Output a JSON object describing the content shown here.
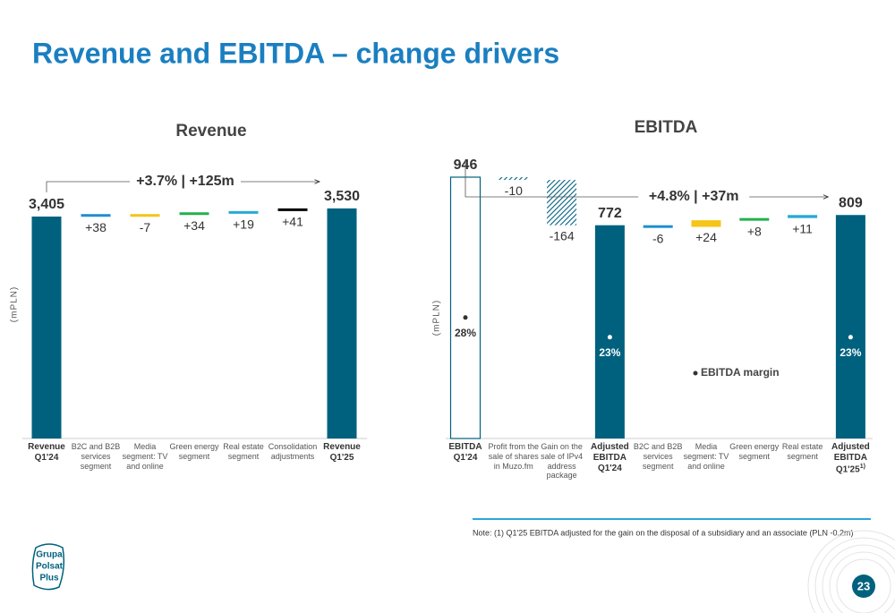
{
  "title": "Revenue and EBITDA – change drivers",
  "note": "Note: (1) Q1'25 EBITDA adjusted for the gain on the disposal of a subsidiary and an associate (PLN -0.2m)",
  "logo": [
    "Grupa",
    "Polsat",
    "Plus"
  ],
  "page_number": "23",
  "chart_data": [
    {
      "type": "waterfall",
      "title": "Revenue",
      "y_label": "(mPLN)",
      "annotation": "+3.7% | +125m",
      "categories": [
        "Revenue Q1'24",
        "B2C and B2B services segment",
        "Media segment: TV and online",
        "Green energy segment",
        "Real estate segment",
        "Consolidation adjustments",
        "Revenue Q1'25"
      ],
      "values": [
        3405,
        38,
        -7,
        34,
        19,
        41,
        3530
      ],
      "value_labels": [
        "3,405",
        "+38",
        "-7",
        "+34",
        "+19",
        "+41",
        "3,530"
      ],
      "is_total": [
        true,
        false,
        false,
        false,
        false,
        false,
        true
      ],
      "bar_styles": [
        "solid",
        "solid",
        "solid",
        "solid",
        "solid",
        "solid",
        "solid"
      ],
      "colors": [
        "#00617f",
        "#1e8fd0",
        "#f5c518",
        "#22b14c",
        "#29a9d6",
        "#000000",
        "#00617f"
      ],
      "ylim": [
        0,
        3700
      ]
    },
    {
      "type": "waterfall",
      "title": "EBITDA",
      "y_label": "(mPLN)",
      "annotation": "+4.8% | +37m",
      "categories": [
        "EBITDA Q1'24",
        "Profit from the sale of shares in Muzo.fm",
        "Gain on the sale of IPv4 address package",
        "Adjusted EBITDA Q1'24",
        "B2C and B2B services segment",
        "Media segment: TV and online",
        "Green energy segment",
        "Real estate segment",
        "Adjusted EBITDA Q1'25"
      ],
      "category_notes": [
        null,
        null,
        null,
        null,
        null,
        null,
        null,
        null,
        "1)"
      ],
      "values": [
        946,
        -10,
        -164,
        772,
        -6,
        24,
        8,
        11,
        809
      ],
      "value_labels": [
        "946",
        "-10",
        "-164",
        "772",
        "-6",
        "+24",
        "+8",
        "+11",
        "809"
      ],
      "is_total": [
        true,
        false,
        false,
        true,
        false,
        false,
        false,
        false,
        true
      ],
      "bar_styles": [
        "outline",
        "hatch",
        "hatch",
        "solid",
        "solid",
        "solid",
        "solid",
        "solid",
        "solid"
      ],
      "colors": [
        "#00617f",
        "#00617f",
        "#00617f",
        "#00617f",
        "#1e8fd0",
        "#f5c518",
        "#22b14c",
        "#29a9d6",
        "#00617f"
      ],
      "ylim": [
        0,
        1000
      ],
      "margin": {
        "name": "EBITDA margin",
        "values": [
          28,
          null,
          null,
          23,
          null,
          null,
          null,
          null,
          23
        ],
        "value_labels": [
          "28%",
          null,
          null,
          "23%",
          null,
          null,
          null,
          null,
          "23%"
        ]
      }
    }
  ]
}
